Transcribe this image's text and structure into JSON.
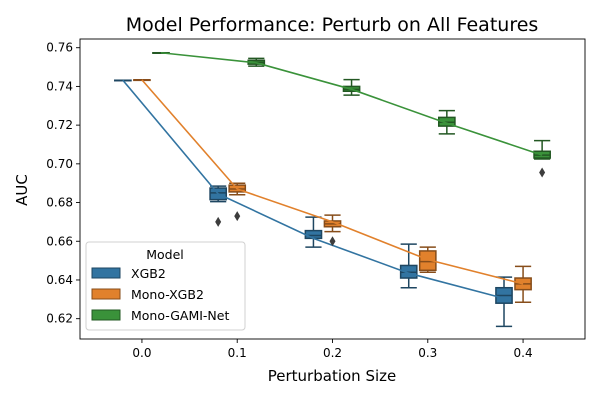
{
  "chart_data": {
    "type": "box",
    "title": "Model Performance: Perturb on All Features",
    "xlabel": "Perturbation Size",
    "ylabel": "AUC",
    "x_ticks": [
      "0.0",
      "0.1",
      "0.2",
      "0.3",
      "0.4"
    ],
    "x_tick_values": [
      0.0,
      0.1,
      0.2,
      0.3,
      0.4
    ],
    "y_ticks": [
      "0.62",
      "0.64",
      "0.66",
      "0.68",
      "0.70",
      "0.72",
      "0.74",
      "0.76"
    ],
    "y_tick_values": [
      0.62,
      0.64,
      0.66,
      0.68,
      0.7,
      0.72,
      0.74,
      0.76
    ],
    "xlim": [
      -0.065,
      0.465
    ],
    "ylim": [
      0.6095,
      0.7645
    ],
    "grid": false,
    "legend": {
      "title": "Model",
      "placement": "lower-left"
    },
    "series": [
      {
        "name": "XGB2",
        "color": "#3274a1",
        "offset": -0.02,
        "boxes": [
          {
            "x": 0.0,
            "whislo": 0.7432,
            "q1": 0.7432,
            "med": 0.7432,
            "q3": 0.7432,
            "whishi": 0.7432,
            "fliers": []
          },
          {
            "x": 0.1,
            "whislo": 0.6805,
            "q1": 0.6815,
            "med": 0.685,
            "q3": 0.6875,
            "whishi": 0.6885,
            "fliers": [
              0.67
            ]
          },
          {
            "x": 0.2,
            "whislo": 0.657,
            "q1": 0.6615,
            "med": 0.663,
            "q3": 0.6655,
            "whishi": 0.6725,
            "fliers": []
          },
          {
            "x": 0.3,
            "whislo": 0.636,
            "q1": 0.641,
            "med": 0.644,
            "q3": 0.6475,
            "whishi": 0.6585,
            "fliers": []
          },
          {
            "x": 0.4,
            "whislo": 0.616,
            "q1": 0.628,
            "med": 0.632,
            "q3": 0.636,
            "whishi": 0.6415,
            "fliers": []
          }
        ],
        "line": [
          0.7432,
          0.6845,
          0.6615,
          0.6435,
          0.6305
        ]
      },
      {
        "name": "Mono-XGB2",
        "color": "#e1812c",
        "offset": 0.0,
        "boxes": [
          {
            "x": 0.0,
            "whislo": 0.7434,
            "q1": 0.7434,
            "med": 0.7434,
            "q3": 0.7434,
            "whishi": 0.7434,
            "fliers": []
          },
          {
            "x": 0.1,
            "whislo": 0.684,
            "q1": 0.6855,
            "med": 0.687,
            "q3": 0.689,
            "whishi": 0.69,
            "fliers": [
              0.673
            ]
          },
          {
            "x": 0.2,
            "whislo": 0.665,
            "q1": 0.6675,
            "med": 0.669,
            "q3": 0.6705,
            "whishi": 0.6735,
            "fliers": [
              0.66
            ]
          },
          {
            "x": 0.3,
            "whislo": 0.644,
            "q1": 0.645,
            "med": 0.6495,
            "q3": 0.655,
            "whishi": 0.657,
            "fliers": []
          },
          {
            "x": 0.4,
            "whislo": 0.6285,
            "q1": 0.635,
            "med": 0.638,
            "q3": 0.641,
            "whishi": 0.647,
            "fliers": []
          }
        ],
        "line": [
          0.7434,
          0.687,
          0.67,
          0.6505,
          0.638
        ]
      },
      {
        "name": "Mono-GAMI-Net",
        "color": "#3a923a",
        "offset": 0.02,
        "boxes": [
          {
            "x": 0.0,
            "whislo": 0.7574,
            "q1": 0.7574,
            "med": 0.7574,
            "q3": 0.7574,
            "whishi": 0.7574,
            "fliers": []
          },
          {
            "x": 0.1,
            "whislo": 0.7505,
            "q1": 0.7515,
            "med": 0.7525,
            "q3": 0.7535,
            "whishi": 0.7545,
            "fliers": []
          },
          {
            "x": 0.2,
            "whislo": 0.7355,
            "q1": 0.7375,
            "med": 0.7385,
            "q3": 0.74,
            "whishi": 0.7435,
            "fliers": []
          },
          {
            "x": 0.3,
            "whislo": 0.7155,
            "q1": 0.7195,
            "med": 0.7215,
            "q3": 0.724,
            "whishi": 0.7275,
            "fliers": []
          },
          {
            "x": 0.4,
            "whislo": 0.7025,
            "q1": 0.703,
            "med": 0.7045,
            "q3": 0.7065,
            "whishi": 0.712,
            "fliers": [
              0.6955
            ]
          }
        ],
        "line": [
          0.7574,
          0.7522,
          0.7385,
          0.721,
          0.7045
        ]
      }
    ]
  }
}
